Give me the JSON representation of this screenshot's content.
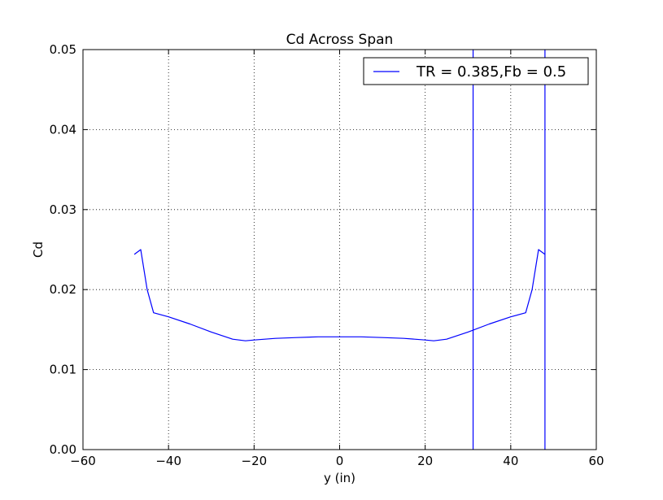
{
  "chart_data": {
    "type": "line",
    "title": "Cd Across Span",
    "xlabel": "y (in)",
    "ylabel": "Cd",
    "xlim": [
      -60,
      60
    ],
    "ylim": [
      0,
      0.05
    ],
    "xticks": [
      -60,
      -40,
      -20,
      0,
      20,
      40,
      60
    ],
    "xtick_labels": [
      "−60",
      "−40",
      "−20",
      "0",
      "20",
      "40",
      "60"
    ],
    "yticks": [
      0,
      0.01,
      0.02,
      0.03,
      0.04,
      0.05
    ],
    "ytick_labels": [
      "0.00",
      "0.01",
      "0.02",
      "0.03",
      "0.04",
      "0.05"
    ],
    "grid": true,
    "grid_style": "dotted",
    "legend_position": "top-right",
    "series": [
      {
        "name": "TR = 0.385,Fb = 0.5",
        "color": "#0000ff",
        "x": [
          -48,
          -46.5,
          -45,
          -43.5,
          -40,
          -35,
          -30,
          -25,
          -22,
          -20,
          -15,
          -10,
          -5,
          0,
          5,
          10,
          15,
          20,
          22,
          25,
          30,
          35,
          40,
          43.5,
          45,
          46.5,
          48
        ],
        "y": [
          0.0244,
          0.025,
          0.02,
          0.0171,
          0.0166,
          0.0157,
          0.0147,
          0.0138,
          0.0136,
          0.0137,
          0.0139,
          0.014,
          0.0141,
          0.0141,
          0.0141,
          0.014,
          0.0139,
          0.0137,
          0.0136,
          0.0138,
          0.0147,
          0.0157,
          0.0166,
          0.0171,
          0.02,
          0.025,
          0.0244
        ]
      }
    ],
    "vertical_lines": [
      {
        "x": 31.2,
        "color": "#0000ff"
      },
      {
        "x": 48,
        "color": "#0000ff"
      }
    ]
  }
}
